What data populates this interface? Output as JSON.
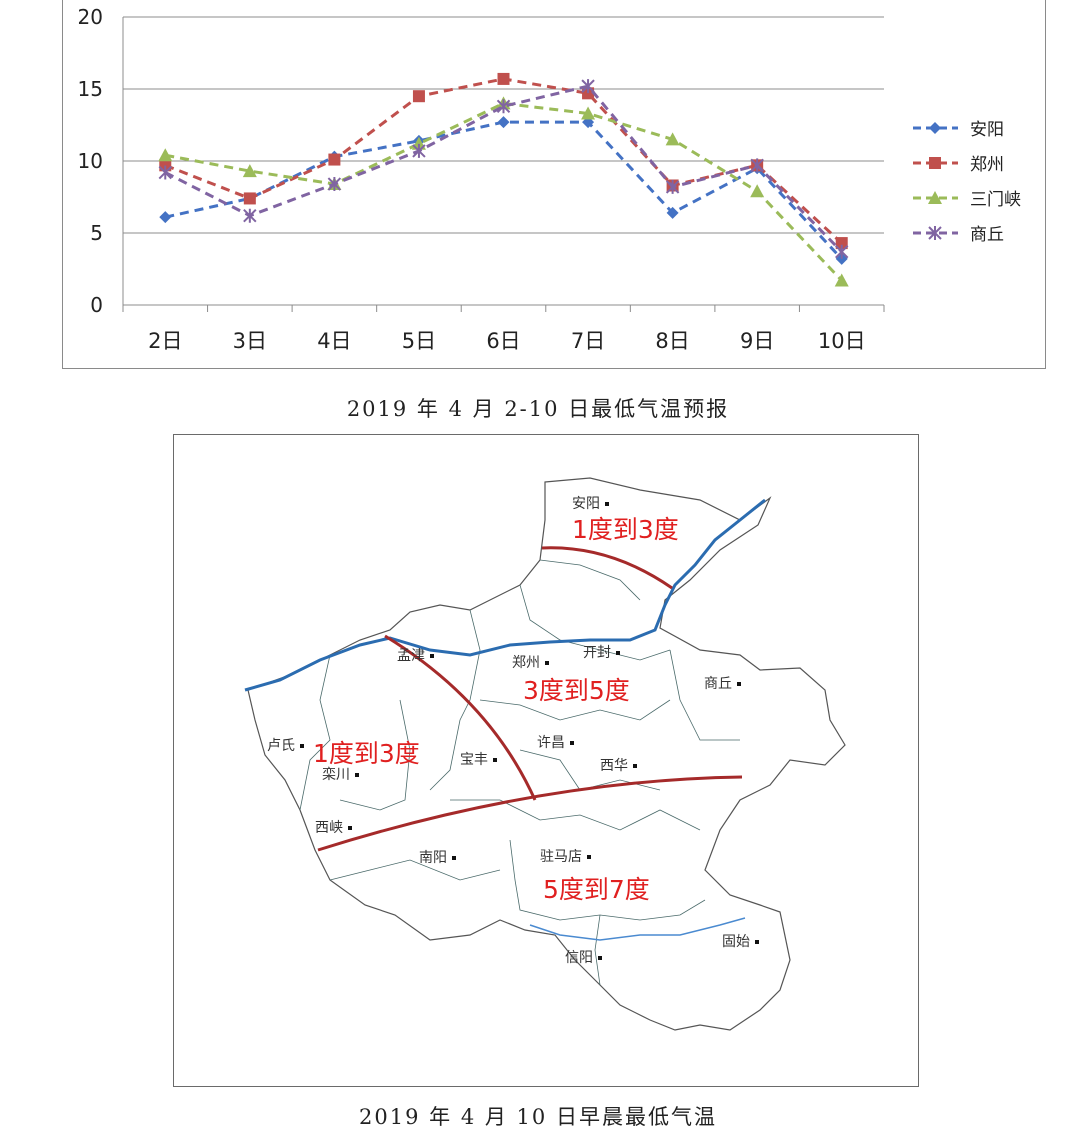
{
  "chart_data": {
    "type": "line",
    "categories": [
      "2日",
      "3日",
      "4日",
      "5日",
      "6日",
      "7日",
      "8日",
      "9日",
      "10日"
    ],
    "yticks": [
      "0",
      "5",
      "10",
      "15",
      "20"
    ],
    "ylim": [
      0,
      20
    ],
    "grid": true,
    "legend_position": "right",
    "series": [
      {
        "name": "安阳",
        "color": "#4472C4",
        "marker": "diamond",
        "values": [
          6.1,
          7.4,
          10.3,
          11.4,
          12.7,
          12.7,
          6.4,
          9.5,
          3.2
        ]
      },
      {
        "name": "郑州",
        "color": "#C0504D",
        "marker": "square",
        "values": [
          9.7,
          7.4,
          10.1,
          14.5,
          15.7,
          14.7,
          8.3,
          9.7,
          4.3
        ]
      },
      {
        "name": "三门峡",
        "color": "#9BBB59",
        "marker": "triangle",
        "values": [
          10.4,
          9.3,
          8.4,
          11.2,
          14.0,
          13.3,
          11.5,
          7.9,
          1.7
        ]
      },
      {
        "name": "商丘",
        "color": "#8064A2",
        "marker": "x",
        "values": [
          9.2,
          6.2,
          8.4,
          10.7,
          13.8,
          15.2,
          8.2,
          9.7,
          3.7
        ]
      }
    ]
  },
  "captions": {
    "chart": "2019 年 4 月 2-10 日最低气温预报",
    "map": "2019 年 4 月 10 日早晨最低气温"
  },
  "map": {
    "cities": [
      {
        "name": "安阳"
      },
      {
        "name": "孟津"
      },
      {
        "name": "郑州"
      },
      {
        "name": "开封"
      },
      {
        "name": "商丘"
      },
      {
        "name": "卢氏"
      },
      {
        "name": "栾川"
      },
      {
        "name": "宝丰"
      },
      {
        "name": "许昌"
      },
      {
        "name": "西华"
      },
      {
        "name": "西峡"
      },
      {
        "name": "南阳"
      },
      {
        "name": "驻马店"
      },
      {
        "name": "信阳"
      },
      {
        "name": "固始"
      }
    ],
    "zone_labels": [
      "1度到3度",
      "3度到5度",
      "1度到3度",
      "5度到7度"
    ],
    "colors": {
      "river": "#2b6cb0",
      "boundary": "#c0392b",
      "label": "#e02020"
    }
  }
}
